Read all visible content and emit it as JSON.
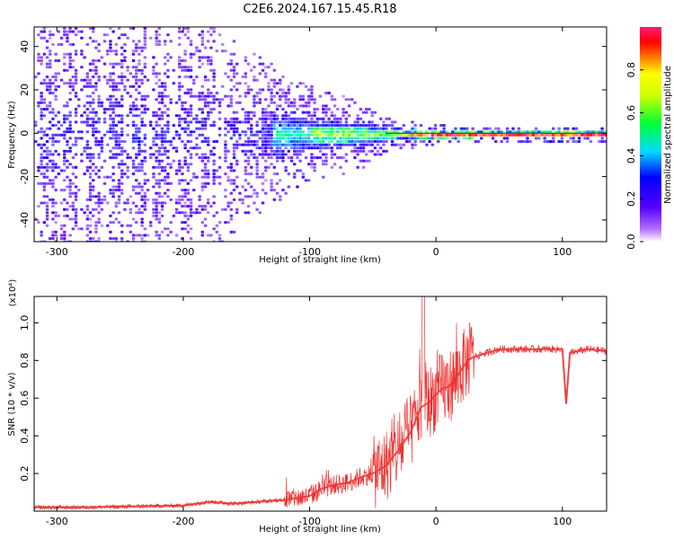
{
  "title": "C2E6.2024.167.15.45.R18",
  "chart_data": [
    {
      "type": "heatmap",
      "xlabel": "Height of straight line (km)",
      "ylabel": "Frequency (Hz)",
      "xlim": [
        -318,
        135
      ],
      "ylim": [
        -50,
        49
      ],
      "xticks": [
        -300,
        -200,
        -100,
        0,
        100
      ],
      "yticks": [
        -40,
        -20,
        0,
        20,
        40
      ],
      "colorbar": {
        "label": "Normalized spectral amplitude",
        "range": [
          0.0,
          1.0
        ],
        "ticks": [
          0.0,
          0.2,
          0.4,
          0.6,
          0.8
        ]
      },
      "tone_frequency_hz": 0,
      "spread_envelope": {
        "x": [
          -318,
          -250,
          -200,
          -150,
          -100,
          -60,
          -40,
          -20,
          0,
          50,
          135
        ],
        "half_width_hz": [
          50,
          50,
          40,
          25,
          14,
          10,
          7,
          3,
          2,
          1.5,
          1.5
        ]
      }
    },
    {
      "type": "line",
      "xlabel": "Height of straight line (km)",
      "ylabel": "SNR (10 * v/v)",
      "yscale_label": "(x10⁴)",
      "color": "#ee3333",
      "xlim": [
        -318,
        135
      ],
      "ylim": [
        0.0,
        1.14
      ],
      "xticks": [
        -300,
        -200,
        -100,
        0,
        100
      ],
      "yticks": [
        0.2,
        0.4,
        0.6,
        0.8,
        1.0
      ],
      "x": [
        -318,
        -280,
        -240,
        -200,
        -180,
        -160,
        -140,
        -120,
        -100,
        -90,
        -80,
        -70,
        -60,
        -50,
        -40,
        -30,
        -20,
        -12,
        -5,
        0,
        5,
        10,
        15,
        20,
        25,
        30,
        40,
        50,
        60,
        80,
        100,
        103,
        106,
        120,
        135
      ],
      "y": [
        0.02,
        0.02,
        0.025,
        0.03,
        0.05,
        0.04,
        0.05,
        0.06,
        0.08,
        0.12,
        0.14,
        0.15,
        0.18,
        0.2,
        0.24,
        0.32,
        0.42,
        0.55,
        0.58,
        0.62,
        0.65,
        0.66,
        0.7,
        0.75,
        0.8,
        0.82,
        0.84,
        0.86,
        0.86,
        0.86,
        0.86,
        0.57,
        0.84,
        0.86,
        0.85
      ]
    }
  ]
}
